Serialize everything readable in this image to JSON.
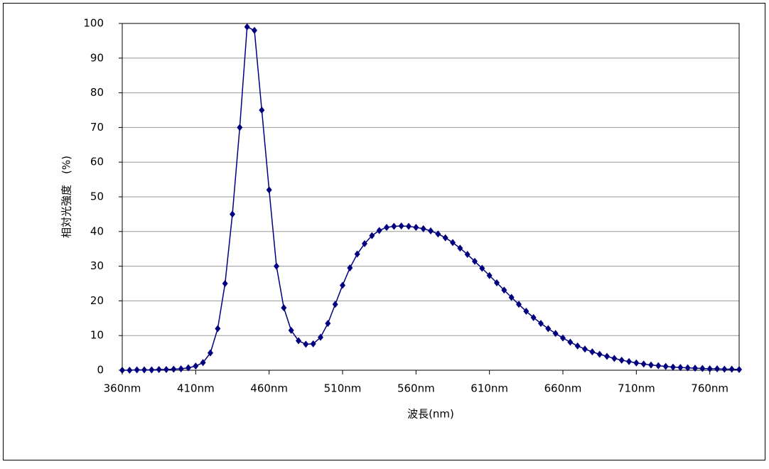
{
  "chart_data": {
    "type": "line",
    "y_label": "相対光強度　(%)",
    "x_label": "波長(nm)",
    "xlim": [
      360,
      780
    ],
    "ylim": [
      0,
      100
    ],
    "xticks": [
      {
        "value": 360,
        "label": "360nm"
      },
      {
        "value": 410,
        "label": "410nm"
      },
      {
        "value": 460,
        "label": "460nm"
      },
      {
        "value": 510,
        "label": "510nm"
      },
      {
        "value": 560,
        "label": "560nm"
      },
      {
        "value": 610,
        "label": "610nm"
      },
      {
        "value": 660,
        "label": "660nm"
      },
      {
        "value": 710,
        "label": "710nm"
      },
      {
        "value": 760,
        "label": "760nm"
      }
    ],
    "yticks": [
      0,
      10,
      20,
      30,
      40,
      50,
      60,
      70,
      80,
      90,
      100
    ],
    "grid": true,
    "x": [
      360,
      365,
      370,
      375,
      380,
      385,
      390,
      395,
      400,
      405,
      410,
      415,
      420,
      425,
      430,
      435,
      440,
      445,
      450,
      455,
      460,
      465,
      470,
      475,
      480,
      485,
      490,
      495,
      500,
      505,
      510,
      515,
      520,
      525,
      530,
      535,
      540,
      545,
      550,
      555,
      560,
      565,
      570,
      575,
      580,
      585,
      590,
      595,
      600,
      605,
      610,
      615,
      620,
      625,
      630,
      635,
      640,
      645,
      650,
      655,
      660,
      665,
      670,
      675,
      680,
      685,
      690,
      695,
      700,
      705,
      710,
      715,
      720,
      725,
      730,
      735,
      740,
      745,
      750,
      755,
      760,
      765,
      770,
      775,
      780
    ],
    "series": [
      {
        "color": "#00007f",
        "values": [
          0,
          0,
          0.1,
          0.1,
          0.1,
          0.2,
          0.2,
          0.3,
          0.4,
          0.7,
          1.2,
          2.2,
          5,
          12,
          25,
          45,
          70,
          99,
          98,
          75,
          52,
          30,
          18,
          11.5,
          8.5,
          7.5,
          7.6,
          9.5,
          13.5,
          19,
          24.5,
          29.5,
          33.5,
          36.5,
          38.8,
          40.3,
          41.2,
          41.5,
          41.6,
          41.5,
          41.2,
          40.8,
          40.2,
          39.3,
          38.2,
          36.8,
          35.2,
          33.4,
          31.4,
          29.4,
          27.3,
          25.2,
          23.1,
          21,
          19,
          17,
          15.2,
          13.5,
          12,
          10.6,
          9.3,
          8.1,
          7,
          6.1,
          5.3,
          4.6,
          4,
          3.4,
          2.9,
          2.5,
          2.1,
          1.8,
          1.5,
          1.3,
          1.1,
          0.9,
          0.8,
          0.7,
          0.6,
          0.5,
          0.4,
          0.4,
          0.3,
          0.3,
          0.2
        ]
      }
    ]
  }
}
